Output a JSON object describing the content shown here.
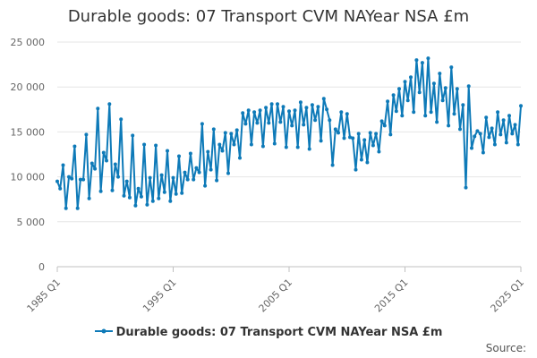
{
  "source_label": "Source:",
  "chart_data": {
    "type": "line",
    "title": "Durable goods: 07 Transport CVM NAYear NSA £m",
    "xlabel": "",
    "ylabel": "",
    "x_tick_labels": [
      "1985 Q1",
      "1995 Q1",
      "2005 Q1",
      "2015 Q1",
      "2025 Q1"
    ],
    "y_ticks": [
      0,
      5000,
      10000,
      15000,
      20000,
      25000
    ],
    "y_tick_labels": [
      "0",
      "5 000",
      "10 000",
      "15 000",
      "20 000",
      "25 000"
    ],
    "ylim": [
      0,
      25000
    ],
    "x_range": [
      "1985 Q1",
      "2025 Q1"
    ],
    "grid": true,
    "legend_position": "bottom",
    "color": "#0e7ab8",
    "series": [
      {
        "name": "Durable goods: 07 Transport CVM NAYear NSA £m",
        "x": [
          "1985 Q1",
          "1985 Q2",
          "1985 Q3",
          "1985 Q4",
          "1986 Q1",
          "1986 Q2",
          "1986 Q3",
          "1986 Q4",
          "1987 Q1",
          "1987 Q2",
          "1987 Q3",
          "1987 Q4",
          "1988 Q1",
          "1988 Q2",
          "1988 Q3",
          "1988 Q4",
          "1989 Q1",
          "1989 Q2",
          "1989 Q3",
          "1989 Q4",
          "1990 Q1",
          "1990 Q2",
          "1990 Q3",
          "1990 Q4",
          "1991 Q1",
          "1991 Q2",
          "1991 Q3",
          "1991 Q4",
          "1992 Q1",
          "1992 Q2",
          "1992 Q3",
          "1992 Q4",
          "1993 Q1",
          "1993 Q2",
          "1993 Q3",
          "1993 Q4",
          "1994 Q1",
          "1994 Q2",
          "1994 Q3",
          "1994 Q4",
          "1995 Q1",
          "1995 Q2",
          "1995 Q3",
          "1995 Q4",
          "1996 Q1",
          "1996 Q2",
          "1996 Q3",
          "1996 Q4",
          "1997 Q1",
          "1997 Q2",
          "1997 Q3",
          "1997 Q4",
          "1998 Q1",
          "1998 Q2",
          "1998 Q3",
          "1998 Q4",
          "1999 Q1",
          "1999 Q2",
          "1999 Q3",
          "1999 Q4",
          "2000 Q1",
          "2000 Q2",
          "2000 Q3",
          "2000 Q4",
          "2001 Q1",
          "2001 Q2",
          "2001 Q3",
          "2001 Q4",
          "2002 Q1",
          "2002 Q2",
          "2002 Q3",
          "2002 Q4",
          "2003 Q1",
          "2003 Q2",
          "2003 Q3",
          "2003 Q4",
          "2004 Q1",
          "2004 Q2",
          "2004 Q3",
          "2004 Q4",
          "2005 Q1",
          "2005 Q2",
          "2005 Q3",
          "2005 Q4",
          "2006 Q1",
          "2006 Q2",
          "2006 Q3",
          "2006 Q4",
          "2007 Q1",
          "2007 Q2",
          "2007 Q3",
          "2007 Q4",
          "2008 Q1",
          "2008 Q2",
          "2008 Q3",
          "2008 Q4",
          "2009 Q1",
          "2009 Q2",
          "2009 Q3",
          "2009 Q4",
          "2010 Q1",
          "2010 Q2",
          "2010 Q3",
          "2010 Q4",
          "2011 Q1",
          "2011 Q2",
          "2011 Q3",
          "2011 Q4",
          "2012 Q1",
          "2012 Q2",
          "2012 Q3",
          "2012 Q4",
          "2013 Q1",
          "2013 Q2",
          "2013 Q3",
          "2013 Q4",
          "2014 Q1",
          "2014 Q2",
          "2014 Q3",
          "2014 Q4",
          "2015 Q1",
          "2015 Q2",
          "2015 Q3",
          "2015 Q4",
          "2016 Q1",
          "2016 Q2",
          "2016 Q3",
          "2016 Q4",
          "2017 Q1",
          "2017 Q2",
          "2017 Q3",
          "2017 Q4",
          "2018 Q1",
          "2018 Q2",
          "2018 Q3",
          "2018 Q4",
          "2019 Q1",
          "2019 Q2",
          "2019 Q3",
          "2019 Q4",
          "2020 Q1",
          "2020 Q2",
          "2020 Q3",
          "2020 Q4",
          "2021 Q1",
          "2021 Q2",
          "2021 Q3",
          "2021 Q4",
          "2022 Q1",
          "2022 Q2",
          "2022 Q3",
          "2022 Q4",
          "2023 Q1",
          "2023 Q2",
          "2023 Q3",
          "2023 Q4",
          "2024 Q1",
          "2024 Q2",
          "2024 Q3",
          "2024 Q4",
          "2025 Q1"
        ],
        "values": [
          9500,
          8700,
          11300,
          6500,
          10000,
          9800,
          13400,
          6500,
          9700,
          9700,
          14700,
          7600,
          11500,
          10900,
          17600,
          8400,
          12700,
          11800,
          18100,
          8500,
          11400,
          10000,
          16400,
          7900,
          9500,
          7700,
          14600,
          6800,
          8700,
          7800,
          13600,
          6900,
          9900,
          7300,
          13500,
          7600,
          10200,
          8300,
          12900,
          7300,
          9900,
          8100,
          12300,
          8200,
          10500,
          9700,
          12600,
          9700,
          11000,
          10500,
          15900,
          9000,
          12800,
          10800,
          15300,
          9600,
          13600,
          12900,
          14900,
          10400,
          14800,
          13600,
          15200,
          12100,
          17100,
          15900,
          17400,
          13600,
          17200,
          16000,
          17400,
          13400,
          17700,
          16000,
          18100,
          13700,
          18100,
          16100,
          17800,
          13300,
          17300,
          15700,
          17400,
          13300,
          18300,
          15800,
          17700,
          13100,
          18000,
          16300,
          17800,
          14000,
          18700,
          17500,
          16300,
          11300,
          15300,
          14900,
          17200,
          14300,
          17000,
          14400,
          14300,
          10800,
          14800,
          11900,
          14100,
          11600,
          14900,
          13500,
          14800,
          12800,
          16200,
          15700,
          18400,
          14700,
          19100,
          17300,
          19800,
          16800,
          20600,
          18500,
          21100,
          17200,
          23000,
          19400,
          22700,
          16800,
          23200,
          17200,
          20400,
          16100,
          21500,
          18500,
          19900,
          15700,
          22200,
          17000,
          19800,
          15300,
          18000,
          8800,
          20100,
          13200,
          14500,
          15100,
          14800,
          12700,
          16600,
          14400,
          15400,
          13600,
          17200,
          14700,
          16300,
          13800,
          16800,
          14800,
          15800,
          13600,
          17900
        ]
      }
    ]
  }
}
